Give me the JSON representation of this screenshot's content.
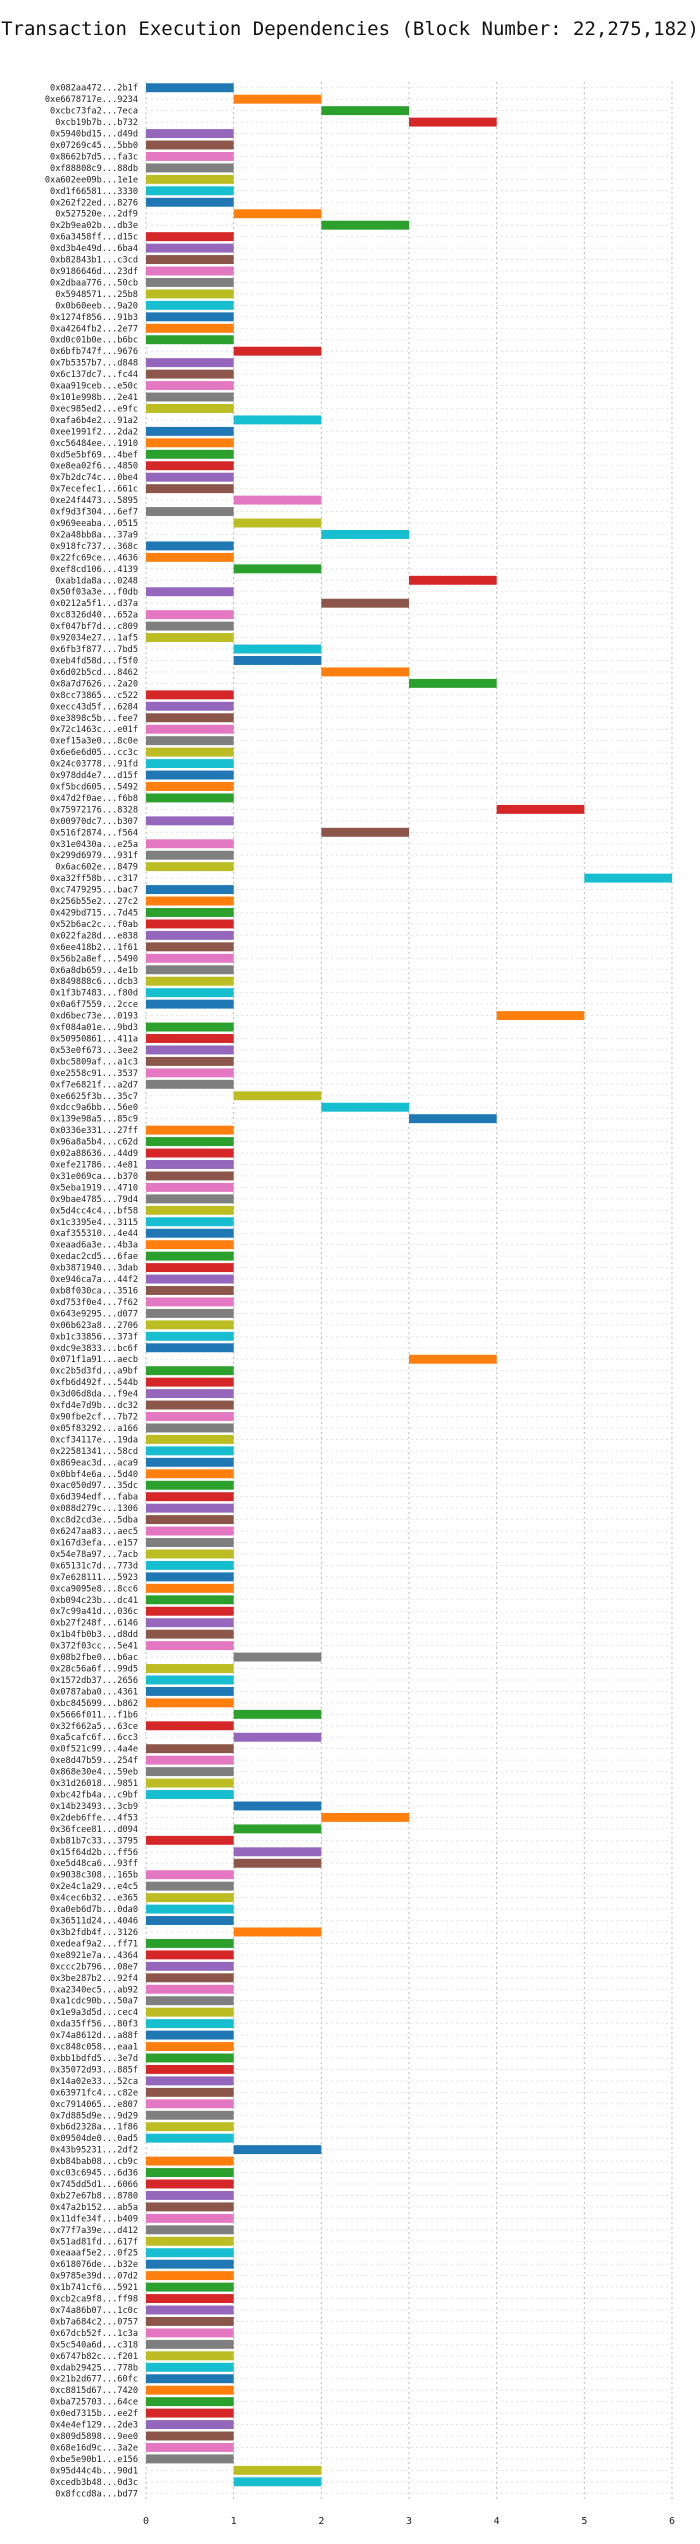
{
  "chart_data": {
    "type": "gantt",
    "title": "Transaction Execution Dependencies (Block Number: 22,275,182)",
    "xlabel": "",
    "ylabel": "",
    "xlim": [
      0,
      6
    ],
    "x_ticks": [
      0,
      1,
      2,
      3,
      4,
      5,
      6
    ],
    "grid": true,
    "palette": [
      "#1f77b4",
      "#ff7f0e",
      "#2ca02c",
      "#d62728",
      "#9467bd",
      "#8c564b",
      "#e377c2",
      "#7f7f7f",
      "#bcbd22",
      "#17becf"
    ],
    "transactions": [
      "0x082aa472...2b1f",
      "0xe6678717e...9234",
      "0xcbc73fa2...7eca",
      "0xcb19b7b...b732",
      "0x5940bd15...d49d",
      "0x07269c45...5bb0",
      "0x8662b7d5...fa3c",
      "0xf88808c9...88db",
      "0xa602ee09b...1e1e",
      "0xd1f66581...3330",
      "0x262f22ed...8276",
      "0x527520e...2df9",
      "0x2b9ea02b...db3e",
      "0x6a3458ff...d15c",
      "0xd3b4e49d...6ba4",
      "0xb82843b1...c3cd",
      "0x9186646d...23df",
      "0x2dbaa776...50cb",
      "0x5948571...25b8",
      "0x0b60eeb...9a20",
      "0x1274f856...91b3",
      "0xa4264fb2...2e77",
      "0xd0c01b0e...b6bc",
      "0x6bfb747f...9676",
      "0x7b5357b7...d848",
      "0x6c137dc7...fc44",
      "0xaa919ceb...e50c",
      "0x101e998b...2e41",
      "0xec985ed2...e9fc",
      "0xafa6b4e2...91a2",
      "0xee1991f2...2da2",
      "0xc56484ee...1910",
      "0xd5e5bf69...4bef",
      "0xe8ea02f6...4850",
      "0x7b2dc74c...0be4",
      "0x7ecefec1...661c",
      "0xe24f4473...5895",
      "0xf9d3f304...6ef7",
      "0x969eeaba...0515",
      "0x2a48bb8a...37a9",
      "0x918fc737...368c",
      "0x22fc69ce...4636",
      "0xef8cd106...4139",
      "0xab1da8a...0248",
      "0x50f03a3e...f0db",
      "0x0212a5f1...d37a",
      "0xc8326d40...652a",
      "0xf047bf7d...c809",
      "0x92034e27...1af5",
      "0x6fb3f877...7bd5",
      "0xeb4fd58d...f5f0",
      "0x6d02b5cd...8462",
      "0x8a7d7626...2a20",
      "0x8cc73865...c522",
      "0xecc43d5f...6284",
      "0xe3898c5b...fee7",
      "0x72c1463c...e01f",
      "0xef15a3e0...8c0e",
      "0x6e6e6d05...cc3c",
      "0x24c03778...91fd",
      "0x978dd4e7...d15f",
      "0xf5bcd605...5492",
      "0x47d2f0ae...f6b8",
      "0x75972176...8328",
      "0x00970dc7...b307",
      "0x516f2874...f564",
      "0x31e0430a...e25a",
      "0x299d6979...931f",
      "0x6ac602e...8479",
      "0xa32ff58b...c317",
      "0xc7479295...bac7",
      "0x256b55e2...27c2",
      "0x429bd715...7d45",
      "0x52b6ac2c...f0ab",
      "0x022fa28d...e838",
      "0x6ee418b2...1f61",
      "0x56b2a8ef...5490",
      "0x6a8db659...4e1b",
      "0x849888c6...dcb3",
      "0x1f3b7483...f80d",
      "0x0a6f7559...2cce",
      "0xd6bec73e...0193",
      "0xf084a01e...9bd3",
      "0x50950861...411a",
      "0x53e0f673...3ee2",
      "0xbc5809af...a1c3",
      "0xe2558c91...3537",
      "0xf7e6821f...a2d7",
      "0xe6625f3b...35c7",
      "0xdcc9a6bb...56e0",
      "0x139e98a5...85c9",
      "0x0336e331...27ff",
      "0x96a8a5b4...c62d",
      "0x02a88636...44d9",
      "0xefe21786...4e81",
      "0x31e069ca...b370",
      "0x5eba1919...4710",
      "0x9bae4785...79d4",
      "0x5d4cc4c4...bf58",
      "0x1c3395e4...3115",
      "0xaf355310...4e44",
      "0xeaad6a3e...4b3a",
      "0xedac2cd5...6fae",
      "0xb3871940...3dab",
      "0xe946ca7a...44f2",
      "0xb8f030ca...3516",
      "0xd753f0e4...7f62",
      "0x643e9295...d077",
      "0x06b623a8...2706",
      "0xb1c33856...373f",
      "0xdc9e3833...bc6f",
      "0x071f1a91...aecb",
      "0xc2b5d3fd...a9bf",
      "0xfb6d492f...544b",
      "0x3d06d8da...f9e4",
      "0xfd4e7d9b...dc32",
      "0x90fbe2cf...7b72",
      "0x05f83292...a166",
      "0xcf34117e...19da",
      "0x22581341...58cd",
      "0x869eac3d...aca9",
      "0x0bbf4e6a...5d40",
      "0xac050d97...35dc",
      "0x6d394edf...faba",
      "0x088d279c...1306",
      "0xc8d2cd3e...5dba",
      "0x6247aa83...aec5",
      "0x167d3efa...e157",
      "0x54e78a97...7acb",
      "0x65131c7d...773d",
      "0x7e628111...5923",
      "0xca9095e8...8cc6",
      "0xb094c23b...dc41",
      "0x7c99a41d...036c",
      "0xb27f248f...6146",
      "0x1b4fb0b3...d8dd",
      "0x372f03cc...5e41",
      "0x08b2fbe0...b6ac",
      "0x28c56a6f...99d5",
      "0x1572db37...2656",
      "0x0787aba0...4361",
      "0xbc845699...b862",
      "0x5666f011...f1b6",
      "0x32f662a5...63ce",
      "0xa5cafc6f...6cc3",
      "0x0f521c99...4a4e",
      "0xe8d47b59...254f",
      "0x868e30e4...59eb",
      "0x31d26018...9851",
      "0xbc42fb4a...c9bf",
      "0x14b23493...3cb9",
      "0x2deb6ffe...4f53",
      "0x36fcee81...d094",
      "0xb81b7c33...3795",
      "0x15f64d2b...ff56",
      "0xe5d48ca6...93ff",
      "0x9038c308...165b",
      "0x2e4c1a29...e4c5",
      "0x4cec6b32...e365",
      "0xa0eb6d7b...0da0",
      "0x36511d24...4046",
      "0x3b2fdb4f...3126",
      "0xedeaf9a2...ff71",
      "0xe8921e7a...4364",
      "0xccc2b796...08e7",
      "0x3be287b2...92f4",
      "0xa2340ec5...ab92",
      "0xa1cdc90b...50a7",
      "0x1e9a3d5d...cec4",
      "0xda35ff56...80f3",
      "0x74a8612d...a88f",
      "0xc848c058...eaa1",
      "0xbb1bdfd5...3e7d",
      "0x35072d93...885f",
      "0x14a02e33...52ca",
      "0x63971fc4...c82e",
      "0xc7914065...e807",
      "0x7d885d9e...9d29",
      "0xb6d2328a...1f86",
      "0x09504de0...0ad5",
      "0x43b95231...2df2",
      "0xb84bab08...cb9c",
      "0xc03c6945...6d36",
      "0x745dd5d1...6066",
      "0xb27e67b8...8780",
      "0x47a2b152...ab5a",
      "0x11dfe34f...b409",
      "0x77f7a39e...d412",
      "0x51ad81fd...617f",
      "0xeaaaf5e2...0f25",
      "0x618076de...b32e",
      "0x9785e39d...07d2",
      "0x1b741cf6...5921",
      "0xcb2ca9f8...ff98",
      "0x74a86b07...1c0c",
      "0xb7a684c2...0757",
      "0x67dcb52f...1c3a",
      "0x5c540a6d...c318",
      "0x6747b82c...f201",
      "0xdab29425...778b",
      "0x21b2d677...60fc",
      "0xc8815d67...7420",
      "0xba725703...64ce",
      "0x0ed7315b...ee2f",
      "0x4e4ef129...2de3",
      "0x809d5898...9ee0",
      "0x68e16d9c...3a2e",
      "0xbe5e90b1...e156",
      "0x95d44c4b...90d1",
      "0xcedb3b48...0d3c",
      "0x8fccd8a...bd77"
    ],
    "start_times": [
      0,
      1,
      2,
      3,
      0,
      0,
      0,
      0,
      0,
      0,
      0,
      1,
      2,
      0,
      0,
      0,
      0,
      0,
      0,
      0,
      0,
      0,
      0,
      1,
      0,
      0,
      0,
      0,
      0,
      1,
      0,
      0,
      0,
      0,
      0,
      0,
      1,
      0,
      1,
      2,
      0,
      0,
      1,
      3,
      0,
      2,
      0,
      0,
      0,
      1,
      1,
      2,
      3,
      0,
      0,
      0,
      0,
      0,
      0,
      0,
      0,
      0,
      0,
      4,
      0,
      2,
      0,
      0,
      0,
      5,
      0,
      0,
      0,
      0,
      0,
      0,
      0,
      0,
      0,
      0,
      0,
      4,
      0,
      0,
      0,
      0,
      0,
      0,
      1,
      2,
      3,
      0,
      0,
      0,
      0,
      0,
      0,
      0,
      0,
      0,
      0,
      0,
      0,
      0,
      0,
      0,
      0,
      0,
      0,
      0,
      0,
      3,
      0,
      0,
      0,
      0,
      0,
      0,
      0,
      0,
      0,
      0,
      0,
      0,
      0,
      0,
      0,
      0,
      0,
      0,
      0,
      0,
      0,
      0,
      0,
      0,
      0,
      1,
      0,
      0,
      0,
      0,
      1,
      0,
      1,
      0,
      0,
      0,
      0,
      0,
      1,
      2,
      1,
      0,
      1,
      1,
      0,
      0,
      0,
      0,
      0,
      1,
      0,
      0,
      0,
      0,
      0,
      0,
      0,
      0,
      0,
      0,
      0,
      0,
      0,
      0,
      0,
      0,
      0,
      0,
      1,
      0,
      0,
      0,
      0,
      0,
      0,
      0,
      0,
      0,
      0,
      0,
      0,
      0,
      0,
      0,
      0,
      0,
      0,
      0,
      0,
      0,
      0,
      0,
      0,
      0,
      0,
      0,
      1,
      1
    ],
    "durations": [
      1,
      1,
      1,
      1,
      1,
      1,
      1,
      1,
      1,
      1,
      1,
      1,
      1,
      1,
      1,
      1,
      1,
      1,
      1,
      1,
      1,
      1,
      1,
      1,
      1,
      1,
      1,
      1,
      1,
      1,
      1,
      1,
      1,
      1,
      1,
      1,
      1,
      1,
      1,
      1,
      1,
      1,
      1,
      1,
      1,
      1,
      1,
      1,
      1,
      1,
      1,
      1,
      1,
      1,
      1,
      1,
      1,
      1,
      1,
      1,
      1,
      1,
      1,
      1,
      1,
      1,
      1,
      1,
      1,
      1,
      1,
      1,
      1,
      1,
      1,
      1,
      1,
      1,
      1,
      1,
      1,
      1,
      1,
      1,
      1,
      1,
      1,
      1,
      1,
      1,
      1,
      1,
      1,
      1,
      1,
      1,
      1,
      1,
      1,
      1,
      1,
      1,
      1,
      1,
      1,
      1,
      1,
      1,
      1,
      1,
      1,
      1,
      1,
      1,
      1,
      1,
      1,
      1,
      1,
      1,
      1,
      1,
      1,
      1,
      1,
      1,
      1,
      1,
      1,
      1,
      1,
      1,
      1,
      1,
      1,
      1,
      1,
      1,
      1,
      1,
      1,
      1,
      1,
      1,
      1,
      1,
      1,
      1,
      1,
      1,
      1,
      1,
      1,
      1,
      1,
      1,
      1,
      1,
      1,
      1,
      1,
      1,
      1,
      1,
      1,
      1,
      1,
      1,
      1,
      1,
      1,
      1,
      1,
      1,
      1,
      1,
      1,
      1,
      1,
      1,
      1,
      1,
      1,
      1,
      1,
      1,
      1,
      1,
      1,
      1,
      1,
      1,
      1,
      1,
      1,
      1,
      1,
      1,
      1,
      1,
      1,
      1,
      1,
      1,
      1,
      1,
      1,
      1,
      1,
      1
    ]
  }
}
